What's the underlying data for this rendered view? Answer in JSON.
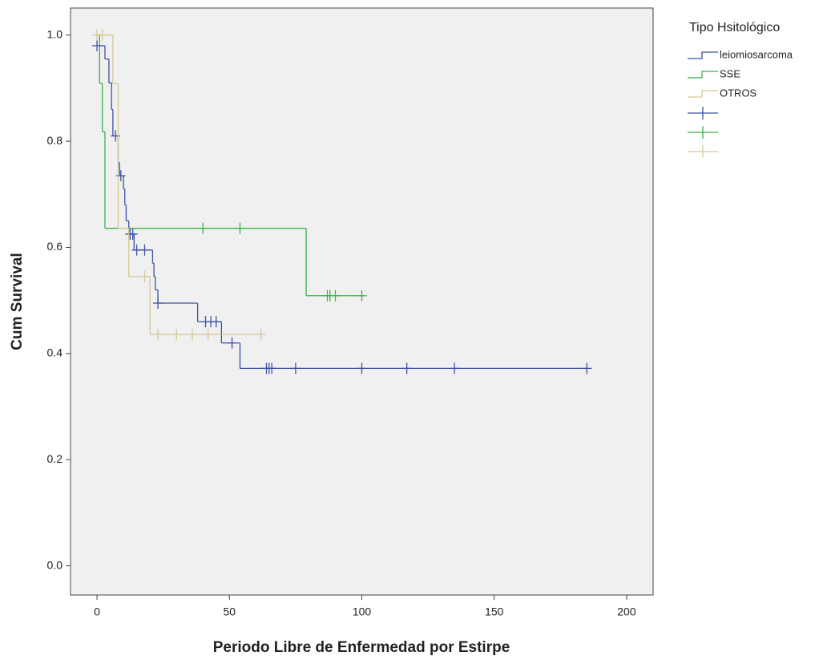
{
  "chart_data": {
    "type": "km-step",
    "xlabel": "Periodo Libre de Enfermedad por Estirpe",
    "ylabel": "Cum Survival",
    "legend_title": "Tipo Hsitológico",
    "xlim": [
      -10,
      210
    ],
    "ylim": [
      -0.055,
      1.051
    ],
    "xticks": [
      0,
      50,
      100,
      150,
      200
    ],
    "yticks": [
      {
        "value": 0,
        "label": "0.0"
      },
      {
        "value": 0.2,
        "label": "0.2"
      },
      {
        "value": 0.4,
        "label": "0.4"
      },
      {
        "value": 0.6,
        "label": "0.6"
      },
      {
        "value": 0.8,
        "label": "0.8"
      },
      {
        "value": 1,
        "label": "1.0"
      }
    ],
    "series": [
      {
        "name": "leiomiosarcoma",
        "color": "#3b52a8",
        "x": [
          0,
          3,
          4.5,
          5.5,
          6,
          8,
          8.5,
          10,
          10.5,
          11,
          12,
          14,
          21,
          21.5,
          22,
          23,
          38,
          47,
          54,
          185
        ],
        "values": [
          0.98,
          0.955,
          0.91,
          0.86,
          0.81,
          0.76,
          0.735,
          0.71,
          0.68,
          0.65,
          0.625,
          0.595,
          0.57,
          0.545,
          0.52,
          0.495,
          0.46,
          0.42,
          0.372,
          0.372
        ],
        "censored": {
          "x": [
            0,
            7,
            9,
            12.5,
            13.5,
            15,
            18,
            23,
            41,
            43,
            45,
            51,
            64,
            65,
            66,
            75,
            100,
            117,
            135,
            185
          ],
          "values": [
            0.98,
            0.81,
            0.735,
            0.625,
            0.625,
            0.595,
            0.595,
            0.495,
            0.46,
            0.46,
            0.46,
            0.42,
            0.372,
            0.372,
            0.372,
            0.372,
            0.372,
            0.372,
            0.372,
            0.372
          ]
        }
      },
      {
        "name": "SSE",
        "color": "#3cb44b",
        "x": [
          0,
          1,
          2,
          3,
          79,
          100
        ],
        "values": [
          1,
          0.909,
          0.818,
          0.636,
          0.509,
          0.509
        ],
        "censored": {
          "x": [
            40,
            54,
            87,
            88,
            90,
            100
          ],
          "values": [
            0.636,
            0.636,
            0.509,
            0.509,
            0.509,
            0.509
          ]
        }
      },
      {
        "name": "OTROS",
        "color": "#d4c895",
        "x": [
          0,
          6,
          8,
          12,
          20,
          62
        ],
        "values": [
          1,
          0.909,
          0.636,
          0.545,
          0.436,
          0.436
        ],
        "censored": {
          "x": [
            0,
            2,
            18,
            23,
            30,
            36,
            42,
            62
          ],
          "values": [
            1,
            1,
            0.545,
            0.436,
            0.436,
            0.436,
            0.436,
            0.436
          ]
        }
      }
    ]
  }
}
